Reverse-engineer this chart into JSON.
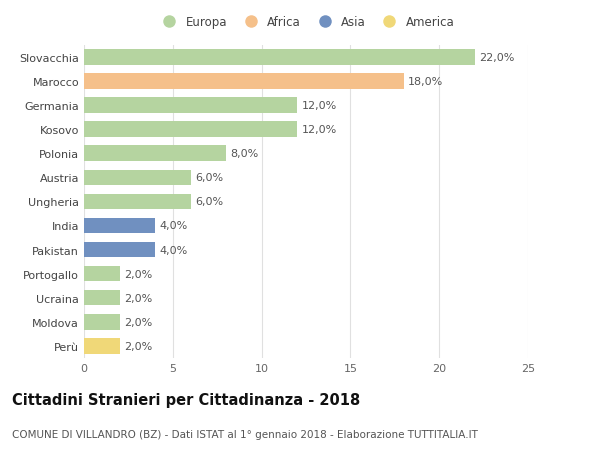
{
  "categories": [
    "Slovacchia",
    "Marocco",
    "Germania",
    "Kosovo",
    "Polonia",
    "Austria",
    "Ungheria",
    "India",
    "Pakistan",
    "Portogallo",
    "Ucraina",
    "Moldova",
    "Perù"
  ],
  "values": [
    22.0,
    18.0,
    12.0,
    12.0,
    8.0,
    6.0,
    6.0,
    4.0,
    4.0,
    2.0,
    2.0,
    2.0,
    2.0
  ],
  "bar_colors": [
    "#b5d4a0",
    "#f5c08a",
    "#b5d4a0",
    "#b5d4a0",
    "#b5d4a0",
    "#b5d4a0",
    "#b5d4a0",
    "#7090c0",
    "#7090c0",
    "#b5d4a0",
    "#b5d4a0",
    "#b5d4a0",
    "#f0d878"
  ],
  "labels": [
    "22,0%",
    "18,0%",
    "12,0%",
    "12,0%",
    "8,0%",
    "6,0%",
    "6,0%",
    "4,0%",
    "4,0%",
    "2,0%",
    "2,0%",
    "2,0%",
    "2,0%"
  ],
  "xlim": [
    0,
    25
  ],
  "xticks": [
    0,
    5,
    10,
    15,
    20,
    25
  ],
  "legend_labels": [
    "Europa",
    "Africa",
    "Asia",
    "America"
  ],
  "legend_colors": [
    "#b5d4a0",
    "#f5c08a",
    "#7090c0",
    "#f0d878"
  ],
  "title": "Cittadini Stranieri per Cittadinanza - 2018",
  "subtitle": "COMUNE DI VILLANDRO (BZ) - Dati ISTAT al 1° gennaio 2018 - Elaborazione TUTTITALIA.IT",
  "background_color": "#ffffff",
  "bar_height": 0.65,
  "grid_color": "#e0e0e0",
  "label_fontsize": 8,
  "tick_fontsize": 8,
  "title_fontsize": 10.5,
  "subtitle_fontsize": 7.5
}
